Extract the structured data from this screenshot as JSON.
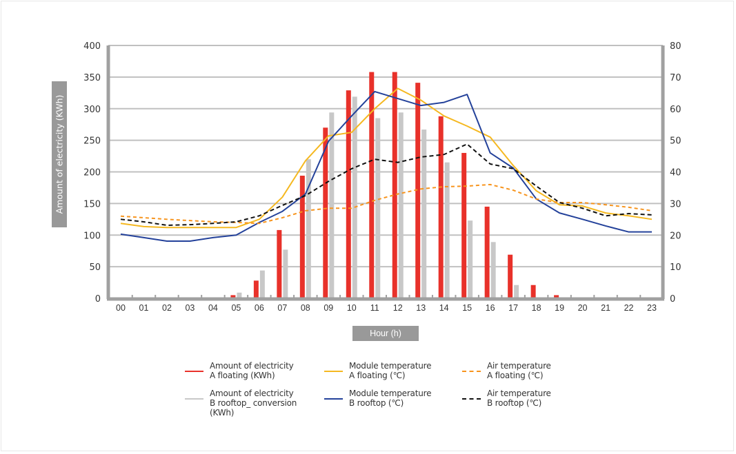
{
  "chart_data": {
    "type": "bar+line",
    "title": "",
    "xlabel": "Hour (h)",
    "ylabel": "Amount of electricity (KWh)",
    "y2label": "",
    "categories": [
      "00",
      "01",
      "02",
      "03",
      "04",
      "05",
      "06",
      "07",
      "08",
      "09",
      "10",
      "11",
      "12",
      "13",
      "14",
      "15",
      "16",
      "17",
      "18",
      "19",
      "20",
      "21",
      "22",
      "23"
    ],
    "ylim": [
      0,
      400
    ],
    "yticks": [
      0,
      50,
      100,
      150,
      200,
      250,
      300,
      350,
      400
    ],
    "y2lim": [
      0,
      80
    ],
    "y2ticks": [
      0,
      10,
      20,
      30,
      40,
      50,
      60,
      70,
      80
    ],
    "grid": true,
    "legend_position": "bottom",
    "bar_series": [
      {
        "name": "Amount of electricity A floating (KWh)",
        "legend": "Amount of electricity\nA floating (KWh)",
        "color": "#e8312a",
        "axis": "left",
        "values": [
          0,
          0,
          0,
          0,
          0,
          5,
          28,
          108,
          194,
          270,
          329,
          358,
          358,
          341,
          288,
          230,
          145,
          69,
          21,
          5,
          0,
          0,
          0,
          0
        ]
      },
      {
        "name": "Amount of electricity B rooftop_ conversion (KWh)",
        "legend": "Amount of electricity\nB rooftop_ conversion\n(KWh)",
        "color": "#c8c8c8",
        "axis": "left",
        "values": [
          0,
          0,
          0,
          0,
          0,
          9,
          44,
          77,
          220,
          294,
          319,
          285,
          294,
          267,
          215,
          123,
          89,
          21,
          0,
          0,
          0,
          0,
          0,
          0
        ]
      }
    ],
    "line_series": [
      {
        "name": "Module temperature A floating (℃)",
        "legend": "Module temperature\nA floating (℃)",
        "color": "#f5b820",
        "style": "solid",
        "axis": "right",
        "values": [
          23.7,
          22.7,
          22.4,
          22.4,
          22.4,
          22.4,
          25,
          32,
          43.5,
          51.4,
          52.5,
          60,
          66.4,
          62.7,
          57.7,
          54.5,
          51,
          42,
          34,
          29.6,
          29.2,
          27,
          26.1,
          25
        ]
      },
      {
        "name": "Module temperature B rooftop (℃)",
        "legend": "Module temperature\nB rooftop (℃)",
        "color": "#23419a",
        "style": "solid",
        "axis": "right",
        "values": [
          20.3,
          19.2,
          18.1,
          18.1,
          19.2,
          20,
          24,
          27.5,
          33,
          49.7,
          57.7,
          65.4,
          63.2,
          61,
          62,
          64.5,
          46,
          41.2,
          31.4,
          27,
          25,
          22.9,
          21,
          21
        ]
      },
      {
        "name": "Air temperature A floating (℃)",
        "legend": "Air temperature\nA floating (℃)",
        "color": "#f7941d",
        "style": "dashed",
        "axis": "right",
        "values": [
          26,
          25.5,
          25,
          24.6,
          24.2,
          24,
          23.7,
          25.5,
          27.7,
          28.5,
          28.5,
          31,
          33,
          34.6,
          35.3,
          35.5,
          36,
          34.2,
          31.4,
          30.3,
          30.3,
          29.6,
          28.8,
          27.7
        ]
      },
      {
        "name": "Air temperature B rooftop (℃)",
        "legend": "Air temperature\nB rooftop (℃)",
        "color": "#111111",
        "style": "dashed",
        "axis": "right",
        "values": [
          25,
          24.2,
          23.1,
          23.3,
          23.7,
          24.2,
          26.1,
          29.4,
          32.5,
          37,
          41,
          44,
          43,
          44.7,
          45.5,
          48.8,
          42.5,
          41,
          35.5,
          30.3,
          28.5,
          26.1,
          26.8,
          26.4
        ]
      }
    ],
    "legend_order": [
      [
        "bar_series",
        0
      ],
      [
        "line_series",
        0
      ],
      [
        "line_series",
        2
      ],
      [
        "bar_series",
        1
      ],
      [
        "line_series",
        1
      ],
      [
        "line_series",
        3
      ]
    ],
    "colors": {
      "axis": "#a0a0a0",
      "grid": "#c0c0c0",
      "label_box": "#999999"
    }
  }
}
